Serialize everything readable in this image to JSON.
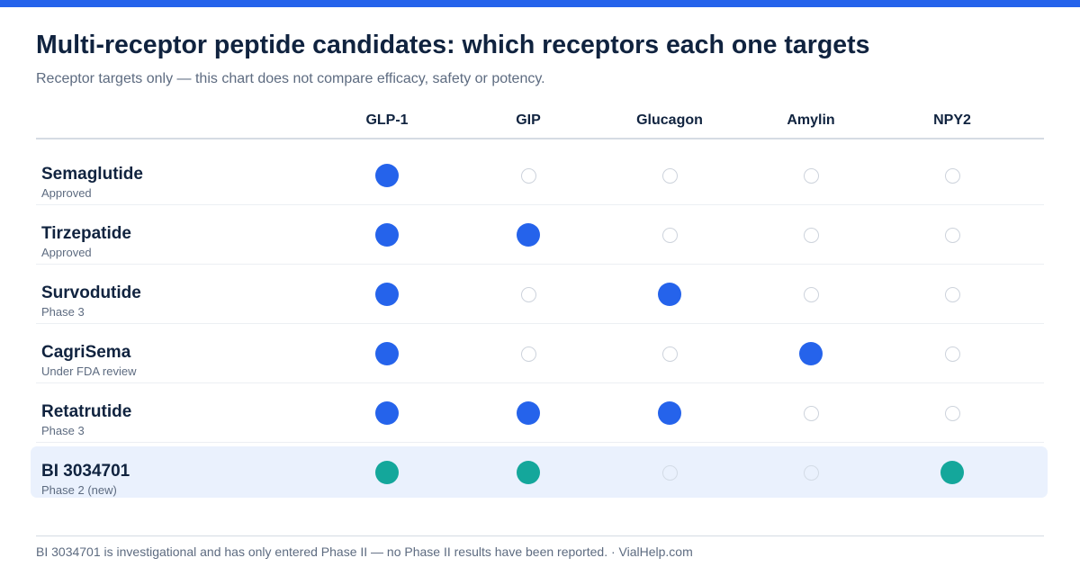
{
  "colors": {
    "accent": "#2563eb",
    "highlight": "#14a79b",
    "highlight_row_bg": "#eaf1fd",
    "empty_ring": "#cdd3dc",
    "title": "#10233f",
    "muted": "#5d6b80"
  },
  "header": {
    "title": "Multi-receptor peptide candidates: which receptors each one targets",
    "subtitle": "Receptor targets only — this chart does not compare efficacy, safety or potency."
  },
  "chart_data": {
    "type": "table",
    "columns": [
      "GLP-1",
      "GIP",
      "Glucagon",
      "Amylin",
      "NPY2"
    ],
    "rows": [
      {
        "name": "Semaglutide",
        "status": "Approved",
        "targets": [
          1,
          0,
          0,
          0,
          0
        ],
        "highlight": false
      },
      {
        "name": "Tirzepatide",
        "status": "Approved",
        "targets": [
          1,
          1,
          0,
          0,
          0
        ],
        "highlight": false
      },
      {
        "name": "Survodutide",
        "status": "Phase 3",
        "targets": [
          1,
          0,
          1,
          0,
          0
        ],
        "highlight": false
      },
      {
        "name": "CagriSema",
        "status": "Under FDA review",
        "targets": [
          1,
          0,
          0,
          1,
          0
        ],
        "highlight": false
      },
      {
        "name": "Retatrutide",
        "status": "Phase 3",
        "targets": [
          1,
          1,
          1,
          0,
          0
        ],
        "highlight": false
      },
      {
        "name": "BI 3034701",
        "status": "Phase 2 (new)",
        "targets": [
          1,
          1,
          0,
          0,
          1
        ],
        "highlight": true
      }
    ]
  },
  "footer": {
    "note": "BI 3034701 is investigational and has only entered Phase II — no Phase II results have been reported. · VialHelp.com"
  }
}
